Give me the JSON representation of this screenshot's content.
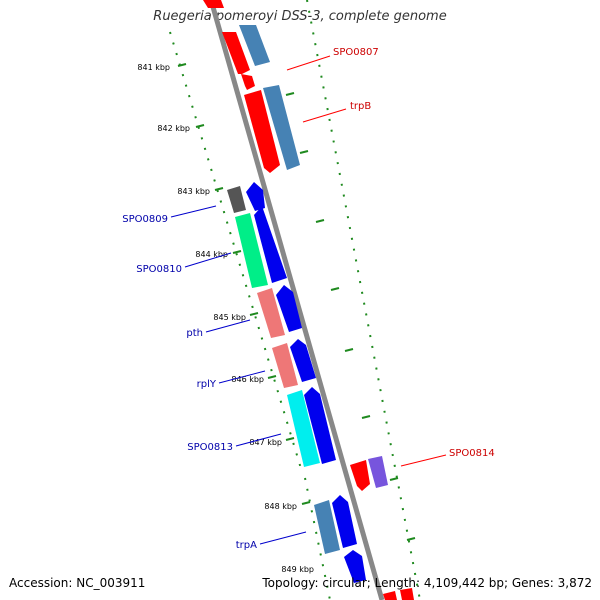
{
  "title": "Ruegeria pomeroyi DSS-3, complete genome",
  "footer": {
    "accession": "Accession: NC_003911",
    "summary": "Topology: circular; Length: 4,109,442 bp; Genes: 3,872"
  },
  "kbp_labels": [
    "841 kbp",
    "842 kbp",
    "843 kbp",
    "844 kbp",
    "845 kbp",
    "846 kbp",
    "847 kbp",
    "848 kbp",
    "849 kbp"
  ],
  "gene_labels_red": [
    {
      "text": "SPO0807"
    },
    {
      "text": "trpB"
    },
    {
      "text": "SPO0814"
    }
  ],
  "gene_labels_blue": [
    {
      "text": "SPO0809"
    },
    {
      "text": "SPO0810"
    },
    {
      "text": "pth"
    },
    {
      "text": "rplY"
    },
    {
      "text": "SPO0813"
    },
    {
      "text": "trpA"
    }
  ],
  "colors": {
    "backbone": "#888888",
    "cds_red": "#ff0000",
    "cds_blue": "#0000ee",
    "steelblue": "#4682b4",
    "label_red": "#cc0000",
    "label_blue": "#0000aa",
    "tick_green": "#228b22"
  }
}
